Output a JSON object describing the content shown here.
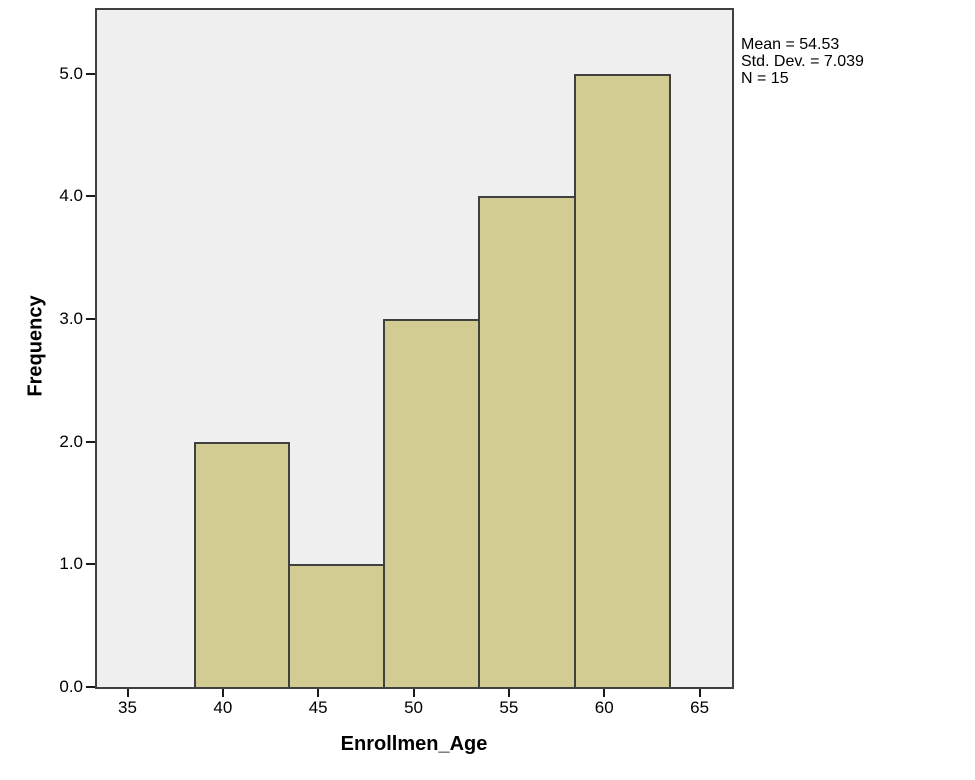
{
  "chart_data": {
    "type": "bar",
    "subtype": "histogram",
    "title": "",
    "xlabel": "Enrollmen_Age",
    "ylabel": "Frequency",
    "bin_edges": [
      38.5,
      43.5,
      48.5,
      53.5,
      58.5,
      63.5
    ],
    "counts": [
      2,
      1,
      3,
      4,
      5
    ],
    "categories": [
      "38.5-43.5",
      "43.5-48.5",
      "48.5-53.5",
      "53.5-58.5",
      "58.5-63.5"
    ],
    "x_ticks": [
      {
        "value": 35,
        "label": "35"
      },
      {
        "value": 40,
        "label": "40"
      },
      {
        "value": 45,
        "label": "45"
      },
      {
        "value": 50,
        "label": "50"
      },
      {
        "value": 55,
        "label": "55"
      },
      {
        "value": 60,
        "label": "60"
      },
      {
        "value": 65,
        "label": "65"
      }
    ],
    "y_ticks": [
      {
        "value": 0,
        "label": "0.0"
      },
      {
        "value": 1,
        "label": "1.0"
      },
      {
        "value": 2,
        "label": "2.0"
      },
      {
        "value": 3,
        "label": "3.0"
      },
      {
        "value": 4,
        "label": "4.0"
      },
      {
        "value": 5,
        "label": "5.0"
      }
    ],
    "xlim": [
      33.4,
      66.7
    ],
    "ylim": [
      0,
      5.52
    ],
    "grid": false,
    "legend": "none",
    "annotations": [
      "Mean = 54.53",
      "Std. Dev. = 7.039",
      "N = 15"
    ],
    "colors": {
      "bar_fill": "#d2cc92",
      "bar_border": "#404040",
      "plot_background": "#f0f0f0",
      "frame": "#404040",
      "tick": "#1a1a1a",
      "page_background": "#ffffff",
      "text": "#000000"
    }
  }
}
